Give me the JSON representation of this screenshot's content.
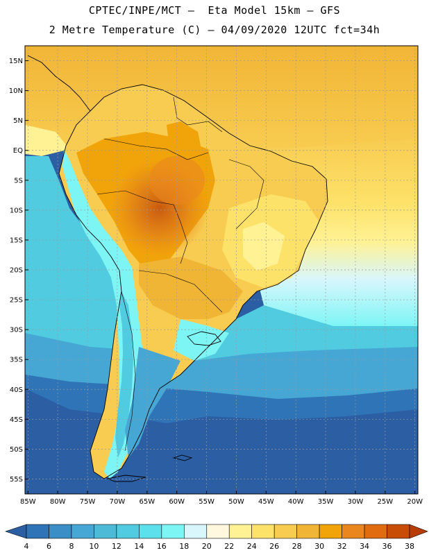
{
  "title": {
    "line1": "CPTEC/INPE/MCT –  Eta Model 15km – GFS",
    "line2": "2 Metre Temperature (C) – 04/09/2020 12UTC fct=34h"
  },
  "axes": {
    "lat_labels": [
      "15N",
      "10N",
      "5N",
      "EQ",
      "5S",
      "10S",
      "15S",
      "20S",
      "25S",
      "30S",
      "35S",
      "40S",
      "45S",
      "50S",
      "55S"
    ],
    "lat_values": [
      15,
      10,
      5,
      0,
      -5,
      -10,
      -15,
      -20,
      -25,
      -30,
      -35,
      -40,
      -45,
      -50,
      -55
    ],
    "lon_labels": [
      "85W",
      "80W",
      "75W",
      "70W",
      "65W",
      "60W",
      "55W",
      "50W",
      "45W",
      "40W",
      "35W",
      "30W",
      "25W",
      "20W"
    ],
    "lon_values": [
      -85,
      -80,
      -75,
      -70,
      -65,
      -60,
      -55,
      -50,
      -45,
      -40,
      -35,
      -30,
      -25,
      -20
    ],
    "lon_range": [
      -85.5,
      -19.5
    ],
    "lat_range": [
      -57.5,
      17.5
    ]
  },
  "colorbar": {
    "labels": [
      "4",
      "6",
      "8",
      "10",
      "12",
      "14",
      "16",
      "18",
      "20",
      "22",
      "24",
      "26",
      "28",
      "30",
      "32",
      "34",
      "36",
      "38"
    ],
    "colors": [
      "#2c5ea4",
      "#2f74b6",
      "#3b8ec6",
      "#46a6d4",
      "#4dbad8",
      "#50cbe0",
      "#5be0ec",
      "#7ef5f5",
      "#d8f6fc",
      "#fff8de",
      "#fff294",
      "#fde26a",
      "#f8cc50",
      "#f1b536",
      "#f1a30a",
      "#e9871e",
      "#e06c0f",
      "#c84e08",
      "#b93c06"
    ]
  },
  "chart_data": {
    "type": "heatmap",
    "title": "2 Metre Temperature (C)",
    "variable": "2 Metre Temperature",
    "unit": "C",
    "model": "Eta Model 15km – GFS",
    "valid": "04/09/2020 12UTC fct=34h",
    "x_range_deg": [
      -85.5,
      -19.5
    ],
    "y_range_deg": [
      -57.5,
      17.5
    ],
    "levels": [
      4,
      6,
      8,
      10,
      12,
      14,
      16,
      18,
      20,
      22,
      24,
      26,
      28,
      30,
      32,
      34,
      36,
      38
    ]
  }
}
